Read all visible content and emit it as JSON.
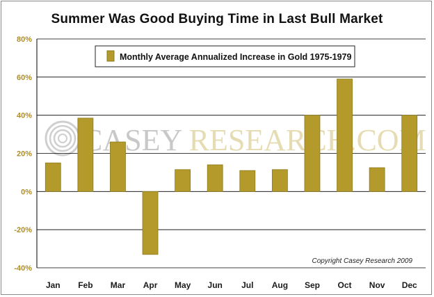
{
  "chart_data": {
    "type": "bar",
    "title": "Summer Was Good Buying Time in Last Bull Market",
    "categories": [
      "Jan",
      "Feb",
      "Mar",
      "Apr",
      "May",
      "Jun",
      "Jul",
      "Aug",
      "Sep",
      "Oct",
      "Nov",
      "Dec"
    ],
    "series": [
      {
        "name": "Monthly Average Annualized Increase in Gold 1975-1979",
        "values": [
          15,
          38.5,
          26,
          -33,
          11.5,
          14,
          11,
          11.5,
          40,
          59,
          12.5,
          40
        ]
      }
    ],
    "ylim": [
      -40,
      80
    ],
    "yticks": [
      80,
      60,
      40,
      20,
      0,
      -20,
      -40
    ],
    "ytick_labels": [
      "80%",
      "60%",
      "40%",
      "20%",
      "0%",
      "-20%",
      "-40%"
    ],
    "grid": true,
    "legend_placement": "top-center",
    "copyright": "Copyright Casey Research 2009",
    "watermark": "CASEY RESEARCH.COM"
  },
  "colors": {
    "bar": "#b39a2b",
    "bar_stroke": "#8d7a1e",
    "ytick": "#b08e25",
    "grid": "#000000",
    "watermark_gray": "#c8c8c8",
    "watermark_gold": "#e6dcb4"
  }
}
